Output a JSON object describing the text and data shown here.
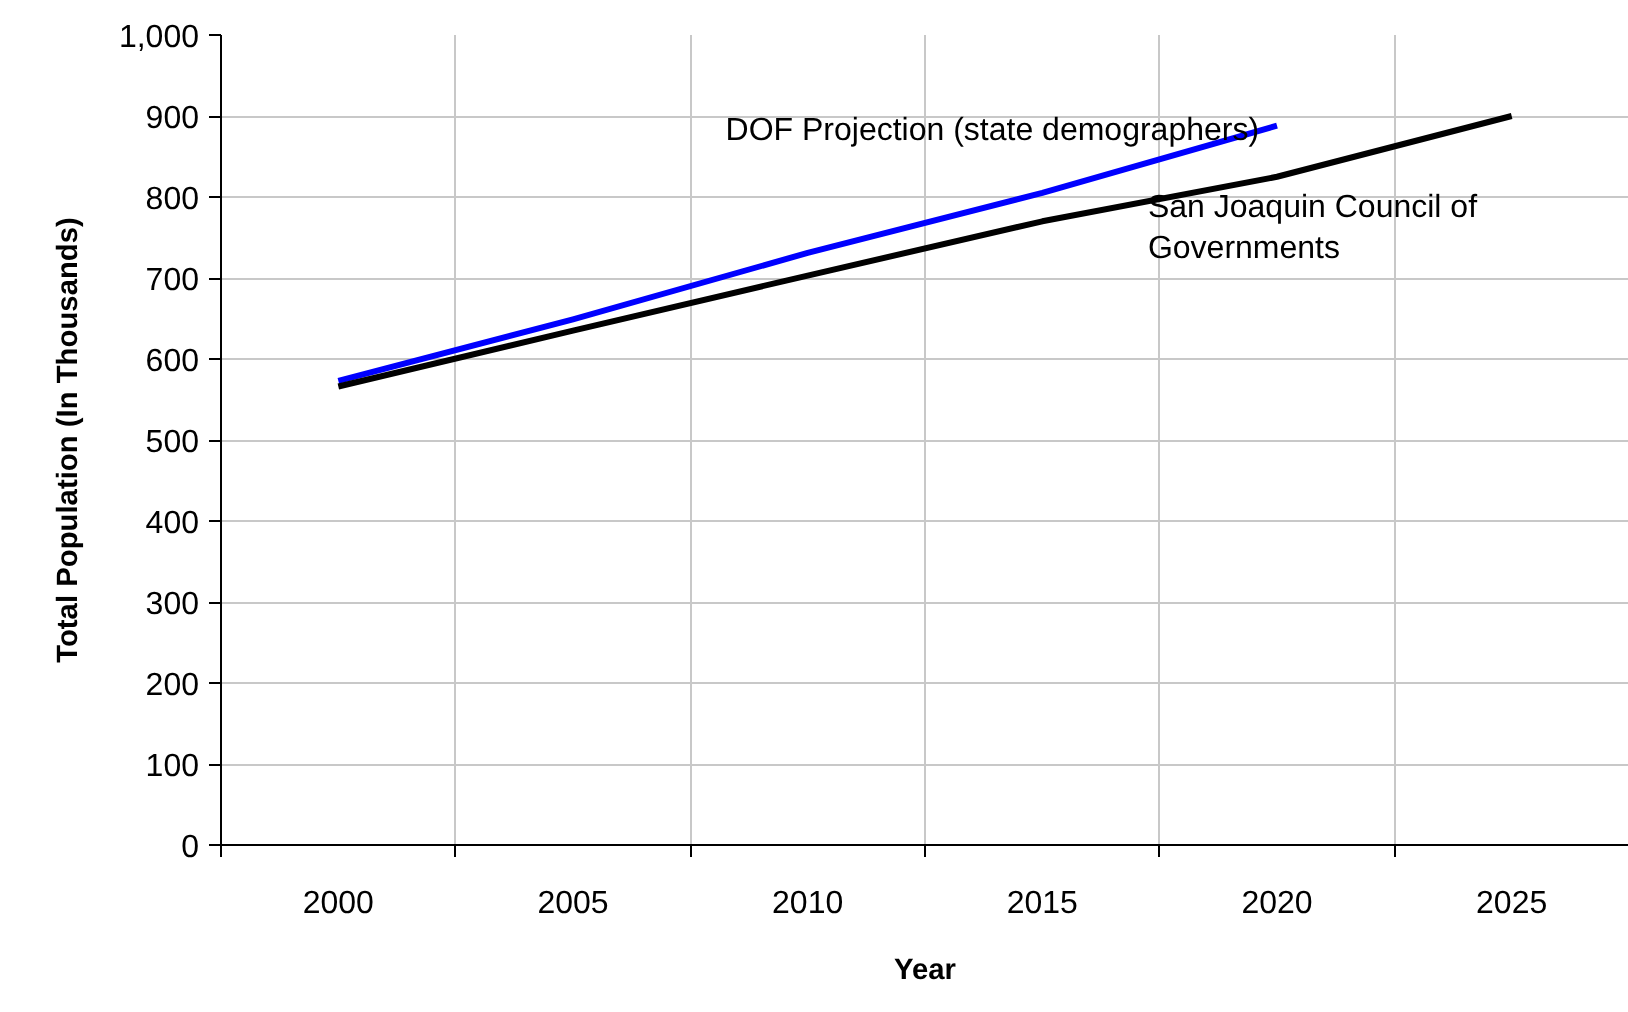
{
  "chart_data": {
    "type": "line",
    "xlabel": "Year",
    "ylabel": "Total Population (In Thousands)",
    "categories": [
      "2000",
      "2005",
      "2010",
      "2015",
      "2020",
      "2025"
    ],
    "series": [
      {
        "name": "DOF Projection (state demographers)",
        "color": "#0000ff",
        "values": [
          573,
          649,
          731,
          805,
          888,
          null
        ]
      },
      {
        "name": "San Joaquin Council of Governments",
        "color": "#000000",
        "values": [
          566,
          635,
          703,
          770,
          825,
          900
        ]
      }
    ],
    "ylim": [
      0,
      1000
    ],
    "yticks": [
      {
        "value": 0,
        "label": "0"
      },
      100,
      200,
      300,
      400,
      500,
      600,
      700,
      800,
      900,
      {
        "value": 1000,
        "label": "1,000"
      }
    ],
    "grid": true,
    "legend": false,
    "marker": "none",
    "line_style": "solid"
  }
}
